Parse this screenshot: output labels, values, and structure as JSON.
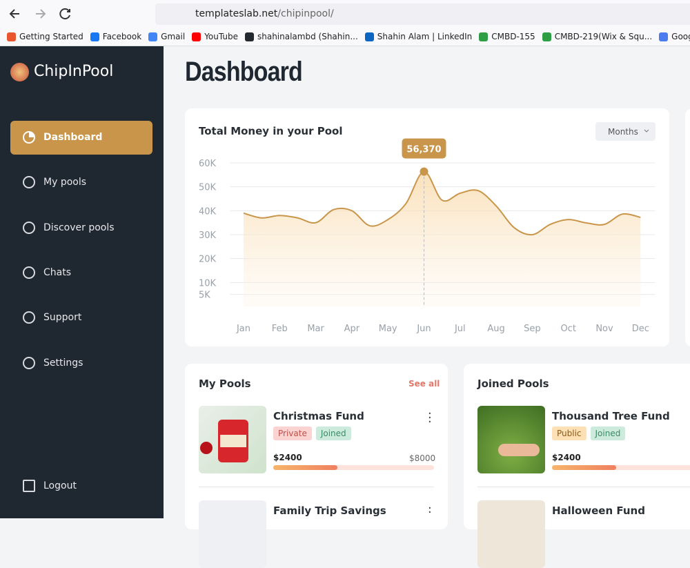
{
  "browser": {
    "url": {
      "host": "templateslab.net",
      "path": "/chipinpool/"
    },
    "bookmarks": [
      "Getting Started",
      "Facebook",
      "Gmail",
      "YouTube",
      "shahinalambd (Shahin...",
      "Shahin Alam | LinkedIn",
      "CMBD-155",
      "CMBD-219(Wix & Squ...",
      "Google Translate"
    ]
  },
  "sidebar": {
    "brand": "ChipInPool",
    "nav": [
      "Dashboard",
      "My pools",
      "Discover pools",
      "Chats",
      "Support",
      "Settings"
    ],
    "logout": "Logout"
  },
  "heading": "Dashboard",
  "chart_data": {
    "type": "line",
    "title": "Total Money in your Pool",
    "period": "Months",
    "categories": [
      "Jan",
      null,
      "Feb",
      null,
      "Mar",
      null,
      "Apr",
      null,
      "May",
      null,
      "Jun",
      null,
      "Jul",
      null,
      "Aug",
      null,
      "Sep",
      null,
      "Oct",
      null,
      "Nov",
      null,
      "Dec"
    ],
    "values": [
      39000,
      37000,
      38000,
      37000,
      35000,
      40500,
      40000,
      33700,
      36300,
      43000,
      56370,
      44400,
      47300,
      48400,
      42000,
      32900,
      30000,
      34300,
      36300,
      34900,
      34300,
      38600,
      37200
    ],
    "value_labels": [
      null,
      null,
      null,
      null,
      null,
      null,
      null,
      null,
      null,
      null,
      "56,370",
      null,
      null,
      null,
      null,
      null,
      null,
      null,
      null,
      null,
      null,
      null,
      null
    ],
    "color": "#c9954a",
    "ylim": [
      0,
      60000
    ],
    "yticks": [
      {
        "value": 5000,
        "label": "5K"
      },
      {
        "value": 10000,
        "label": "10K"
      },
      {
        "value": 20000,
        "label": "20K"
      },
      {
        "value": 30000,
        "label": "30K"
      },
      {
        "value": 40000,
        "label": "40K"
      },
      {
        "value": 50000,
        "label": "50K"
      },
      {
        "value": 60000,
        "label": "60K"
      }
    ],
    "grid": true
  },
  "my_pools": {
    "title": "My Pools",
    "see_all": "See all",
    "items": [
      {
        "name": "Christmas Fund",
        "tags": [
          "Private",
          "Joined"
        ],
        "raised": "$2400",
        "goal": "$8000",
        "progress": 40
      },
      {
        "name": "Family Trip Savings"
      }
    ]
  },
  "joined_pools": {
    "title": "Joined Pools",
    "items": [
      {
        "name": "Thousand Tree Fund",
        "tags": [
          "Public",
          "Joined"
        ],
        "raised": "$2400",
        "progress": 40
      },
      {
        "name": "Halloween Fund"
      }
    ]
  }
}
